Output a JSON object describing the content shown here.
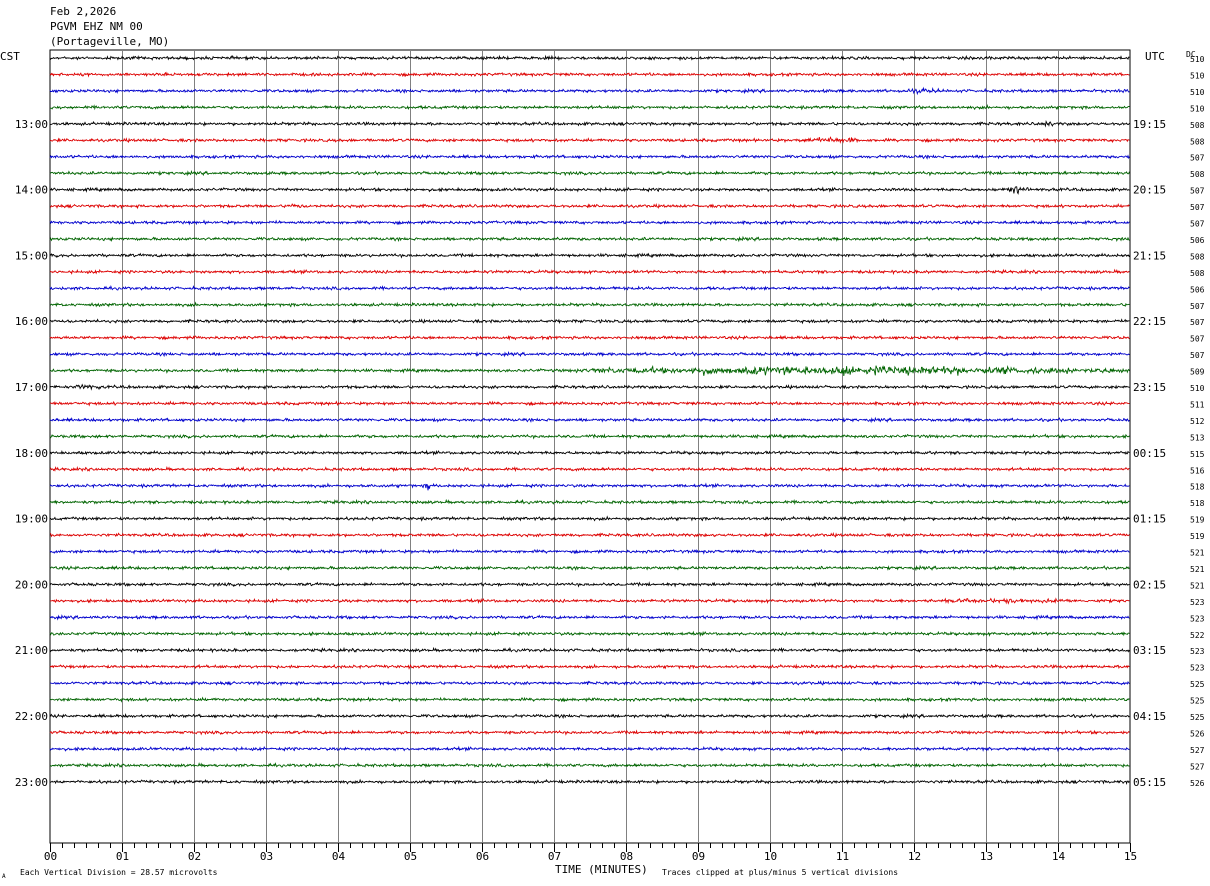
{
  "header": {
    "date": "Feb 2,2026",
    "station": "PGVM EHZ NM 00",
    "location": "(Portageville, MO)"
  },
  "left_tz": "CST",
  "right_tz": "UTC",
  "dc_label": "DC",
  "footer": {
    "scale": "Each Vertical Division =   28.57 microvolts",
    "xlabel": "TIME (MINUTES)",
    "clip_note": "Traces clipped at plus/minus 5 vertical divisions",
    "corner_mark": "A"
  },
  "colors": {
    "black": "#000000",
    "red": "#dd0000",
    "blue": "#0000cc",
    "green": "#006400",
    "grid": "#808080"
  },
  "chart_data": {
    "type": "line",
    "description_kind": "helicorder",
    "x_ticks": [
      "00",
      "01",
      "02",
      "03",
      "04",
      "05",
      "06",
      "07",
      "08",
      "09",
      "10",
      "11",
      "12",
      "13",
      "14",
      "15"
    ],
    "xlim": [
      0,
      15
    ],
    "left_hour_labels": [
      "13:00",
      "14:00",
      "15:00",
      "16:00",
      "17:00",
      "18:00",
      "19:00",
      "20:00",
      "21:00",
      "22:00",
      "23:00"
    ],
    "right_hour_labels": [
      "19:15",
      "20:15",
      "21:15",
      "22:15",
      "23:15",
      "00:15",
      "01:15",
      "02:15",
      "03:15",
      "04:15",
      "05:15"
    ],
    "hour_label_first_trace": 4,
    "traces_per_hour": 4,
    "dc_values": [
      "510",
      "510",
      "510",
      "510",
      "508",
      "508",
      "507",
      "508",
      "507",
      "507",
      "507",
      "506",
      "508",
      "508",
      "506",
      "507",
      "507",
      "507",
      "507",
      "509",
      "510",
      "511",
      "512",
      "513",
      "515",
      "516",
      "518",
      "518",
      "519",
      "519",
      "521",
      "521",
      "521",
      "523",
      "523",
      "522",
      "523",
      "523",
      "525",
      "525",
      "525",
      "526",
      "527",
      "527",
      "526"
    ],
    "events": [
      {
        "trace": 2,
        "start_min": 11.9,
        "end_min": 12.4,
        "amp": 2.0
      },
      {
        "trace": 4,
        "start_min": 13.7,
        "end_min": 14.0,
        "amp": 2.5
      },
      {
        "trace": 5,
        "start_min": 10.4,
        "end_min": 11.3,
        "amp": 2.5
      },
      {
        "trace": 8,
        "start_min": 13.3,
        "end_min": 13.6,
        "amp": 4.0
      },
      {
        "trace": 9,
        "start_min": 3.3,
        "end_min": 3.5,
        "amp": 2.0
      },
      {
        "trace": 19,
        "start_min": 7.3,
        "end_min": 15.0,
        "amp": 3.5
      },
      {
        "trace": 20,
        "start_min": 0.3,
        "end_min": 0.8,
        "amp": 2.0
      },
      {
        "trace": 26,
        "start_min": 5.2,
        "end_min": 5.3,
        "amp": 4.0
      },
      {
        "trace": 33,
        "start_min": 12.0,
        "end_min": 14.5,
        "amp": 1.8
      }
    ]
  }
}
